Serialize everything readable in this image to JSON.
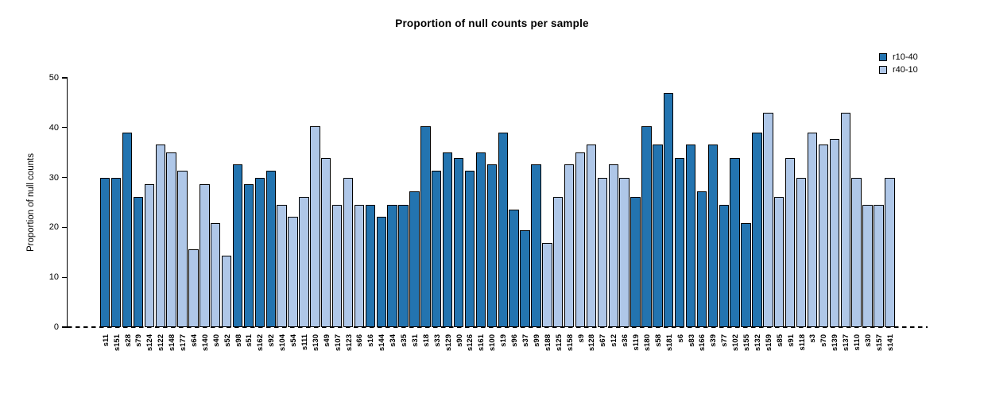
{
  "chart_data": {
    "type": "bar",
    "title": "Proportion of null counts per sample",
    "xlabel": "",
    "ylabel": "Proportion of null counts",
    "ylim": [
      0,
      50
    ],
    "yticks": [
      0,
      10,
      20,
      30,
      40,
      50
    ],
    "grid": false,
    "legend_position": "top-right",
    "zero_line_style": "dashed",
    "legend": [
      {
        "name": "r10-40",
        "color": "#2374B0"
      },
      {
        "name": "r40-10",
        "color": "#AFC7E8"
      }
    ],
    "bars": [
      {
        "label": "s11",
        "value": 29.9,
        "group": "r10-40"
      },
      {
        "label": "s151",
        "value": 29.9,
        "group": "r10-40"
      },
      {
        "label": "s28",
        "value": 39.0,
        "group": "r10-40"
      },
      {
        "label": "s79",
        "value": 26.1,
        "group": "r10-40"
      },
      {
        "label": "s124",
        "value": 28.6,
        "group": "r40-10"
      },
      {
        "label": "s122",
        "value": 36.6,
        "group": "r40-10"
      },
      {
        "label": "s148",
        "value": 35.1,
        "group": "r40-10"
      },
      {
        "label": "s177",
        "value": 31.3,
        "group": "r40-10"
      },
      {
        "label": "s64",
        "value": 15.6,
        "group": "r40-10"
      },
      {
        "label": "s140",
        "value": 28.6,
        "group": "r40-10"
      },
      {
        "label": "s40",
        "value": 20.8,
        "group": "r40-10"
      },
      {
        "label": "s52",
        "value": 14.4,
        "group": "r40-10"
      },
      {
        "label": "s98",
        "value": 32.6,
        "group": "r10-40"
      },
      {
        "label": "s51",
        "value": 28.6,
        "group": "r10-40"
      },
      {
        "label": "s162",
        "value": 29.9,
        "group": "r10-40"
      },
      {
        "label": "s92",
        "value": 31.3,
        "group": "r10-40"
      },
      {
        "label": "s104",
        "value": 24.6,
        "group": "r40-10"
      },
      {
        "label": "s54",
        "value": 22.1,
        "group": "r40-10"
      },
      {
        "label": "s111",
        "value": 26.1,
        "group": "r40-10"
      },
      {
        "label": "s130",
        "value": 40.3,
        "group": "r40-10"
      },
      {
        "label": "s49",
        "value": 33.9,
        "group": "r40-10"
      },
      {
        "label": "s107",
        "value": 24.6,
        "group": "r40-10"
      },
      {
        "label": "s123",
        "value": 29.9,
        "group": "r40-10"
      },
      {
        "label": "s66",
        "value": 24.6,
        "group": "r40-10"
      },
      {
        "label": "s16",
        "value": 24.6,
        "group": "r10-40"
      },
      {
        "label": "s144",
        "value": 22.1,
        "group": "r10-40"
      },
      {
        "label": "s34",
        "value": 24.6,
        "group": "r10-40"
      },
      {
        "label": "s35",
        "value": 24.6,
        "group": "r10-40"
      },
      {
        "label": "s31",
        "value": 27.3,
        "group": "r10-40"
      },
      {
        "label": "s18",
        "value": 40.3,
        "group": "r10-40"
      },
      {
        "label": "s33",
        "value": 31.3,
        "group": "r10-40"
      },
      {
        "label": "s129",
        "value": 35.1,
        "group": "r10-40"
      },
      {
        "label": "s90",
        "value": 33.9,
        "group": "r10-40"
      },
      {
        "label": "s126",
        "value": 31.3,
        "group": "r10-40"
      },
      {
        "label": "s161",
        "value": 35.1,
        "group": "r10-40"
      },
      {
        "label": "s100",
        "value": 32.6,
        "group": "r10-40"
      },
      {
        "label": "s19",
        "value": 39.0,
        "group": "r10-40"
      },
      {
        "label": "s96",
        "value": 23.5,
        "group": "r10-40"
      },
      {
        "label": "s37",
        "value": 19.5,
        "group": "r10-40"
      },
      {
        "label": "s99",
        "value": 32.6,
        "group": "r10-40"
      },
      {
        "label": "s188",
        "value": 16.8,
        "group": "r40-10"
      },
      {
        "label": "s125",
        "value": 26.1,
        "group": "r40-10"
      },
      {
        "label": "s158",
        "value": 32.6,
        "group": "r40-10"
      },
      {
        "label": "s9",
        "value": 35.1,
        "group": "r40-10"
      },
      {
        "label": "s128",
        "value": 36.6,
        "group": "r40-10"
      },
      {
        "label": "s67",
        "value": 29.9,
        "group": "r40-10"
      },
      {
        "label": "s12",
        "value": 32.6,
        "group": "r40-10"
      },
      {
        "label": "s36",
        "value": 29.9,
        "group": "r40-10"
      },
      {
        "label": "s119",
        "value": 26.1,
        "group": "r10-40"
      },
      {
        "label": "s180",
        "value": 40.3,
        "group": "r10-40"
      },
      {
        "label": "s58",
        "value": 36.6,
        "group": "r10-40"
      },
      {
        "label": "s181",
        "value": 47.0,
        "group": "r10-40"
      },
      {
        "label": "s6",
        "value": 33.9,
        "group": "r10-40"
      },
      {
        "label": "s83",
        "value": 36.6,
        "group": "r10-40"
      },
      {
        "label": "s166",
        "value": 27.3,
        "group": "r10-40"
      },
      {
        "label": "s39",
        "value": 36.6,
        "group": "r10-40"
      },
      {
        "label": "s77",
        "value": 24.6,
        "group": "r10-40"
      },
      {
        "label": "s102",
        "value": 33.9,
        "group": "r10-40"
      },
      {
        "label": "s155",
        "value": 20.8,
        "group": "r10-40"
      },
      {
        "label": "s132",
        "value": 39.0,
        "group": "r10-40"
      },
      {
        "label": "s159",
        "value": 43.0,
        "group": "r40-10"
      },
      {
        "label": "s85",
        "value": 26.1,
        "group": "r40-10"
      },
      {
        "label": "s91",
        "value": 33.9,
        "group": "r40-10"
      },
      {
        "label": "s118",
        "value": 29.9,
        "group": "r40-10"
      },
      {
        "label": "s3",
        "value": 39.0,
        "group": "r40-10"
      },
      {
        "label": "s70",
        "value": 36.6,
        "group": "r40-10"
      },
      {
        "label": "s139",
        "value": 37.8,
        "group": "r40-10"
      },
      {
        "label": "s137",
        "value": 43.0,
        "group": "r40-10"
      },
      {
        "label": "s110",
        "value": 29.9,
        "group": "r40-10"
      },
      {
        "label": "s30",
        "value": 24.6,
        "group": "r40-10"
      },
      {
        "label": "s157",
        "value": 24.6,
        "group": "r40-10"
      },
      {
        "label": "s141",
        "value": 29.9,
        "group": "r40-10"
      }
    ]
  }
}
